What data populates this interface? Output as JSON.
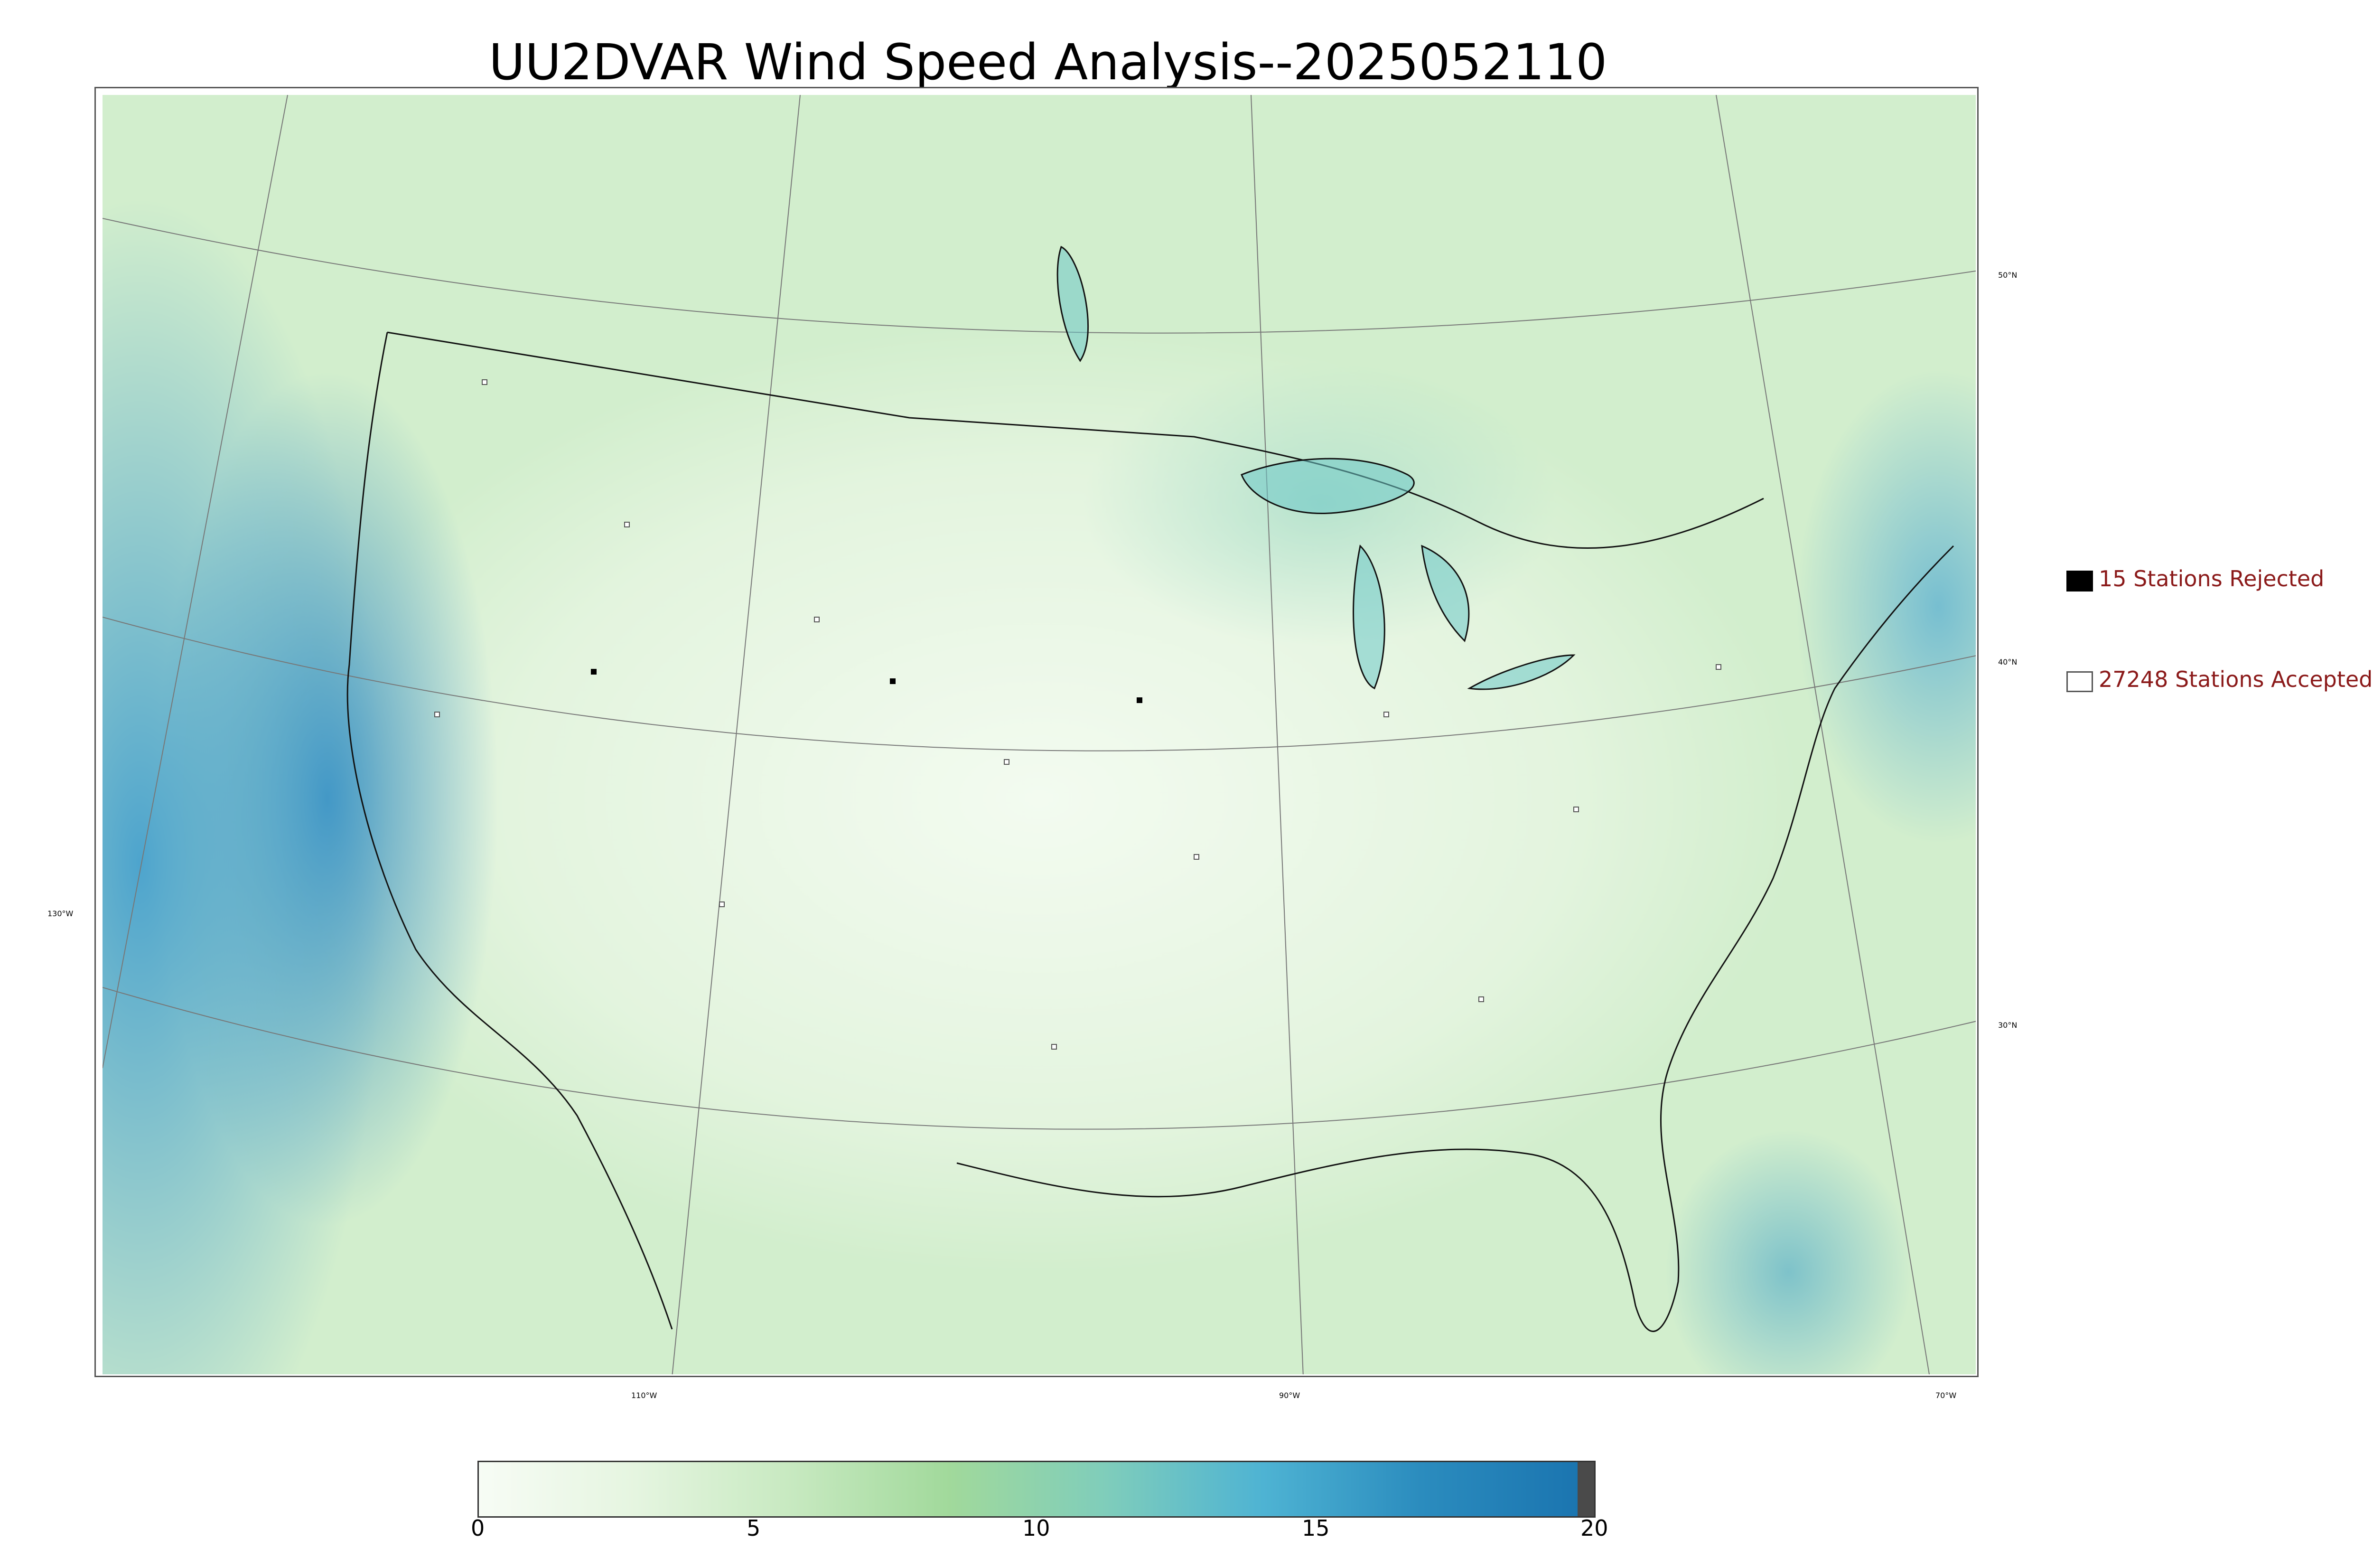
{
  "title": "UU2DVAR Wind Speed Analysis--2025052110",
  "map": {
    "longitude_labels": [
      "130°W",
      "110°W",
      "90°W",
      "70°W"
    ],
    "latitude_labels": [
      "50°N",
      "40°N",
      "30°N"
    ]
  },
  "legend": {
    "rejected_label": "15 Stations Rejected",
    "accepted_label": "27248 Stations Accepted"
  },
  "colorbar": {
    "ticks": [
      "0",
      "5",
      "10",
      "15",
      "20"
    ],
    "colors": [
      "#f7fcf5",
      "#e5f5e0",
      "#c7e9c0",
      "#a1d99b",
      "#7fcdbb",
      "#4eb3d3",
      "#2b8cbe",
      "#1b75b0",
      "#4a4a4a"
    ]
  },
  "colors": {
    "rejected_fill": "#000000",
    "accepted_fill": "#ffffff",
    "legend_text": "#8b1a1a"
  }
}
